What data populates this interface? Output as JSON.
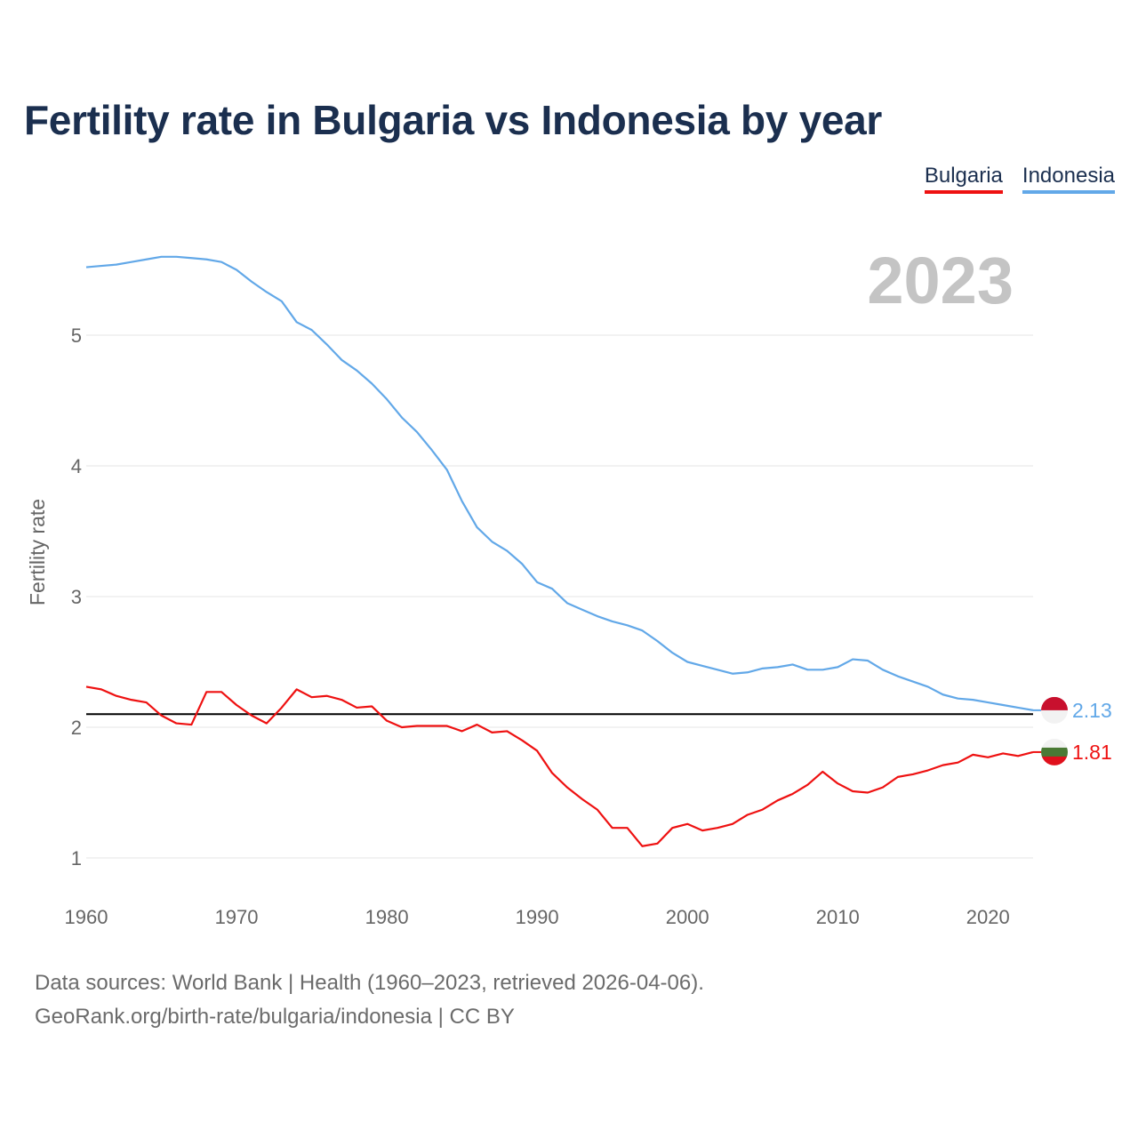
{
  "title": "Fertility rate in Bulgaria vs Indonesia by year",
  "legend": [
    {
      "label": "Bulgaria",
      "color": "#ee1111"
    },
    {
      "label": "Indonesia",
      "color": "#62a8e8"
    }
  ],
  "footer": {
    "line1": "Data sources: World Bank | Health (1960–2023, retrieved 2026-04-06).",
    "line2": "GeoRank.org/birth-rate/bulgaria/indonesia | CC BY"
  },
  "chart_data": {
    "type": "line",
    "title": "Fertility rate in Bulgaria vs Indonesia by year",
    "year_label": "2023",
    "xlabel": "",
    "ylabel": "Fertility rate",
    "xlim": [
      1960,
      2023
    ],
    "ylim": [
      0.7,
      5.75
    ],
    "x_ticks": [
      1960,
      1970,
      1980,
      1990,
      2000,
      2010,
      2020
    ],
    "y_ticks": [
      1,
      2,
      3,
      4,
      5
    ],
    "reference_line": 2.1,
    "reference_color": "#000000",
    "x": [
      1960,
      1961,
      1962,
      1963,
      1964,
      1965,
      1966,
      1967,
      1968,
      1969,
      1970,
      1971,
      1972,
      1973,
      1974,
      1975,
      1976,
      1977,
      1978,
      1979,
      1980,
      1981,
      1982,
      1983,
      1984,
      1985,
      1986,
      1987,
      1988,
      1989,
      1990,
      1991,
      1992,
      1993,
      1994,
      1995,
      1996,
      1997,
      1998,
      1999,
      2000,
      2001,
      2002,
      2003,
      2004,
      2005,
      2006,
      2007,
      2008,
      2009,
      2010,
      2011,
      2012,
      2013,
      2014,
      2015,
      2016,
      2017,
      2018,
      2019,
      2020,
      2021,
      2022,
      2023
    ],
    "series": [
      {
        "name": "Bulgaria",
        "color": "#ee1111",
        "end_label": "1.81",
        "values": [
          2.31,
          2.29,
          2.24,
          2.21,
          2.19,
          2.09,
          2.03,
          2.02,
          2.27,
          2.27,
          2.17,
          2.09,
          2.03,
          2.15,
          2.29,
          2.23,
          2.24,
          2.21,
          2.15,
          2.16,
          2.05,
          2.0,
          2.01,
          2.01,
          2.01,
          1.97,
          2.02,
          1.96,
          1.97,
          1.9,
          1.82,
          1.65,
          1.54,
          1.45,
          1.37,
          1.23,
          1.23,
          1.09,
          1.11,
          1.23,
          1.26,
          1.21,
          1.23,
          1.26,
          1.33,
          1.37,
          1.44,
          1.49,
          1.56,
          1.66,
          1.57,
          1.51,
          1.5,
          1.54,
          1.62,
          1.64,
          1.67,
          1.71,
          1.73,
          1.79,
          1.77,
          1.8,
          1.78,
          1.81
        ]
      },
      {
        "name": "Indonesia",
        "color": "#62a8e8",
        "end_label": "2.13",
        "values": [
          5.52,
          5.53,
          5.54,
          5.56,
          5.58,
          5.6,
          5.6,
          5.59,
          5.58,
          5.56,
          5.5,
          5.41,
          5.33,
          5.26,
          5.1,
          5.04,
          4.93,
          4.81,
          4.73,
          4.63,
          4.51,
          4.37,
          4.26,
          4.12,
          3.97,
          3.73,
          3.53,
          3.42,
          3.35,
          3.25,
          3.11,
          3.06,
          2.95,
          2.9,
          2.85,
          2.81,
          2.78,
          2.74,
          2.66,
          2.57,
          2.5,
          2.47,
          2.44,
          2.41,
          2.42,
          2.45,
          2.46,
          2.48,
          2.44,
          2.44,
          2.46,
          2.52,
          2.51,
          2.44,
          2.39,
          2.35,
          2.31,
          2.25,
          2.22,
          2.21,
          2.19,
          2.17,
          2.15,
          2.13
        ]
      }
    ]
  }
}
